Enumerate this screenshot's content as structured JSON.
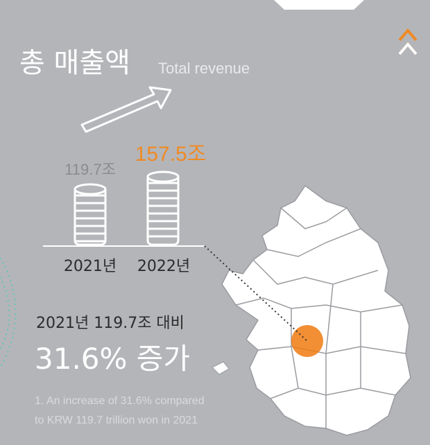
{
  "header": {
    "title": "총 매출액",
    "subtitle": "Total revenue"
  },
  "years": [
    {
      "year": "2021년",
      "amount": "119.7조"
    },
    {
      "year": "2022년",
      "amount": "157.5조"
    }
  ],
  "comparison": "2021년 119.7조 대비",
  "highlight": "31.6% 증가",
  "footnote": [
    "1. An increase of 31.6% compared",
    "to KRW 119.7 trillion won in 2021"
  ]
}
